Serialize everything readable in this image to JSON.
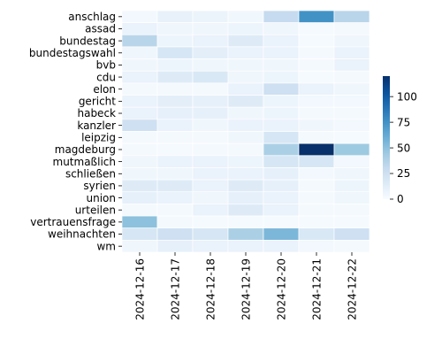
{
  "chart_data": {
    "type": "heatmap",
    "title": "",
    "xlabel": "",
    "ylabel": "",
    "x": [
      "2024-12-16",
      "2024-12-17",
      "2024-12-18",
      "2024-12-19",
      "2024-12-20",
      "2024-12-21",
      "2024-12-22"
    ],
    "y": [
      "anschlag",
      "assad",
      "bundestag",
      "bundestagswahl",
      "bvb",
      "cdu",
      "elon",
      "gericht",
      "habeck",
      "kanzler",
      "leipzig",
      "magdeburg",
      "mutmaßlich",
      "schließen",
      "syrien",
      "union",
      "urteilen",
      "vertrauensfrage",
      "weihnachten",
      "wm"
    ],
    "values": [
      [
        3,
        9,
        7,
        4,
        30,
        75,
        35
      ],
      [
        8,
        5,
        5,
        6,
        5,
        1,
        2
      ],
      [
        35,
        6,
        8,
        15,
        8,
        1,
        5
      ],
      [
        5,
        20,
        12,
        8,
        8,
        2,
        8
      ],
      [
        5,
        6,
        5,
        5,
        5,
        2,
        8
      ],
      [
        8,
        15,
        18,
        5,
        6,
        1,
        2
      ],
      [
        2,
        2,
        2,
        8,
        25,
        8,
        5
      ],
      [
        8,
        12,
        10,
        15,
        6,
        3,
        3
      ],
      [
        8,
        10,
        10,
        5,
        6,
        2,
        2
      ],
      [
        25,
        8,
        5,
        8,
        8,
        5,
        3
      ],
      [
        2,
        2,
        2,
        5,
        20,
        2,
        1
      ],
      [
        2,
        1,
        2,
        2,
        40,
        120,
        45
      ],
      [
        5,
        8,
        8,
        6,
        20,
        20,
        3
      ],
      [
        5,
        5,
        8,
        8,
        10,
        3,
        5
      ],
      [
        15,
        15,
        8,
        15,
        10,
        2,
        6
      ],
      [
        10,
        8,
        5,
        10,
        8,
        2,
        5
      ],
      [
        2,
        2,
        8,
        15,
        8,
        2,
        2
      ],
      [
        50,
        2,
        1,
        1,
        1,
        1,
        1
      ],
      [
        20,
        25,
        20,
        40,
        55,
        18,
        25
      ],
      [
        5,
        10,
        8,
        8,
        8,
        3,
        2
      ]
    ],
    "colorbar": {
      "min": 0,
      "max": 120,
      "ticks": [
        0,
        25,
        50,
        75,
        100
      ],
      "colormap": "Blues"
    },
    "grid": false,
    "legend": "colorbar right"
  }
}
